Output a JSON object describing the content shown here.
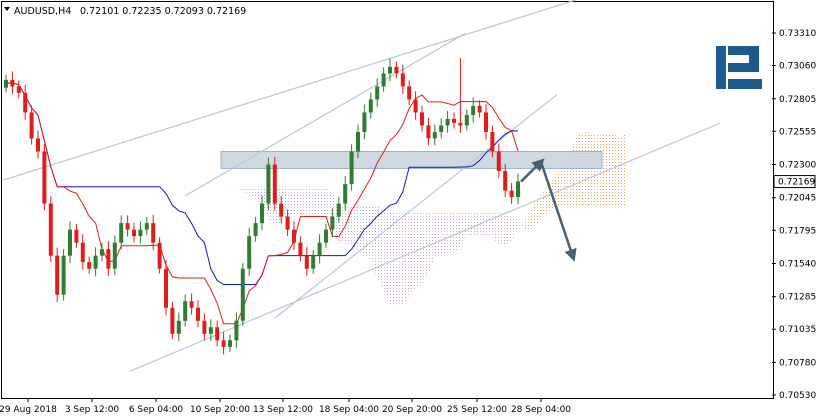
{
  "header": {
    "symbol": "AUDUSD,H4",
    "ohlc": "0.72101 0.72235 0.72093 0.72169"
  },
  "colors": {
    "bull": "#2e7d32",
    "bear": "#e21b1b",
    "tenkan": "#e21b1b",
    "kijun": "#1616c8",
    "cloud_orange": "#f0a050",
    "cloud_purple": "#c9a0d6",
    "channel": "#b8c8d6",
    "zone_fill": "#c7d2dd",
    "arrow": "#4a5f6f",
    "logo": "#1d5b8c"
  },
  "logo": {
    "icon": "roboforex-r-logo"
  },
  "chart_data": {
    "type": "candlestick",
    "symbol": "AUDUSD",
    "timeframe": "H4",
    "y_ticks": [
      "0.73310",
      "0.73060",
      "0.72805",
      "0.72555",
      "0.72300",
      "0.72045",
      "0.71795",
      "0.71540",
      "0.71285",
      "0.71035",
      "0.70780",
      "0.70530"
    ],
    "x_ticks": [
      "29 Aug 2018",
      "3 Sep 12:00",
      "6 Sep 04:00",
      "10 Sep 20:00",
      "13 Sep 12:00",
      "18 Sep 04:00",
      "20 Sep 20:00",
      "25 Sep 12:00",
      "28 Sep 04:00"
    ],
    "current_price": "0.72169",
    "ylim": [
      0.7053,
      0.7331
    ],
    "indicators": [
      "Ichimoku Tenkan-sen",
      "Ichimoku Kijun-sen",
      "Ichimoku Kumo cloud"
    ],
    "path": [
      0.7295,
      0.729,
      0.7285,
      0.727,
      0.725,
      0.724,
      0.72,
      0.716,
      0.713,
      0.716,
      0.718,
      0.717,
      0.7155,
      0.715,
      0.716,
      0.7165,
      0.715,
      0.717,
      0.7185,
      0.718,
      0.7175,
      0.718,
      0.7185,
      0.717,
      0.715,
      0.712,
      0.71,
      0.711,
      0.7125,
      0.712,
      0.711,
      0.71,
      0.7105,
      0.7095,
      0.709,
      0.7095,
      0.711,
      0.715,
      0.7175,
      0.7185,
      0.72,
      0.723,
      0.72,
      0.719,
      0.718,
      0.717,
      0.716,
      0.715,
      0.716,
      0.717,
      0.718,
      0.719,
      0.72,
      0.7215,
      0.724,
      0.7255,
      0.727,
      0.728,
      0.729,
      0.73,
      0.7305,
      0.73,
      0.729,
      0.728,
      0.727,
      0.726,
      0.725,
      0.7255,
      0.726,
      0.7265,
      0.7262,
      0.726,
      0.7268,
      0.7275,
      0.727,
      0.7255,
      0.724,
      0.7225,
      0.721,
      0.7205,
      0.7217
    ],
    "channels": [
      {
        "from": [
          "29 Aug 2018",
          0.7224
        ],
        "to": [
          "28 Sep 04:00",
          0.7348
        ],
        "style": "upper channel"
      },
      {
        "from": [
          "6 Sep 04:00",
          0.7193
        ],
        "to": [
          "25 Sep 12:00",
          0.7336
        ],
        "style": "inner upper"
      },
      {
        "from": [
          "13 Sep 12:00",
          0.7117
        ],
        "to": [
          "28 Sep 04:00",
          0.7274
        ],
        "style": "inner lower"
      },
      {
        "from": [
          "3 Sep 12:00",
          0.7059
        ],
        "to": [
          "28 Sep 04:00",
          0.7204
        ],
        "style": "lower channel"
      }
    ],
    "resistance_zone": [
      0.7227,
      0.724
    ],
    "forecast": [
      0.72169,
      0.7232,
      0.7159
    ]
  }
}
